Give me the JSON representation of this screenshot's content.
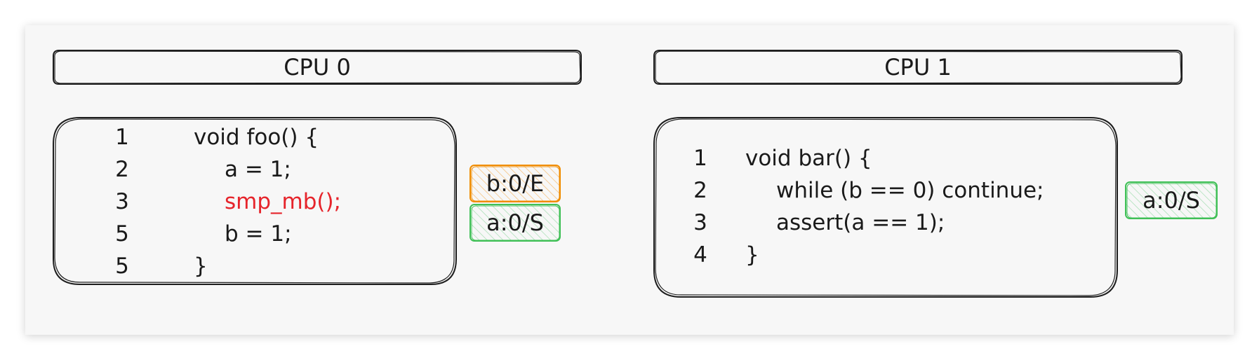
{
  "cpus": [
    {
      "title": "CPU 0",
      "code": [
        {
          "num": "1",
          "text": "void foo() {",
          "indent": 0,
          "highlight": false
        },
        {
          "num": "2",
          "text": "a = 1;",
          "indent": 1,
          "highlight": false
        },
        {
          "num": "3",
          "text": "smp_mb();",
          "indent": 1,
          "highlight": true
        },
        {
          "num": "5",
          "text": "b = 1;",
          "indent": 1,
          "highlight": false
        },
        {
          "num": "5",
          "text": "}",
          "indent": 0,
          "highlight": false
        }
      ],
      "cache": [
        {
          "text": "b:0/E",
          "color": "#f08c00"
        },
        {
          "text": "a:0/S",
          "color": "#40c057"
        }
      ]
    },
    {
      "title": "CPU 1",
      "code": [
        {
          "num": "1",
          "text": "void bar() {",
          "indent": 0,
          "highlight": false
        },
        {
          "num": "2",
          "text": "while (b == 0) continue;",
          "indent": 1,
          "highlight": false
        },
        {
          "num": "3",
          "text": "assert(a == 1);",
          "indent": 1,
          "highlight": false
        },
        {
          "num": "4",
          "text": "}",
          "indent": 0,
          "highlight": false
        }
      ],
      "cache": [
        {
          "text": "a:0/S",
          "color": "#40c057"
        }
      ]
    }
  ],
  "colors": {
    "stroke": "#1e1e1e",
    "highlight": "#e6242b",
    "cache_exclusive": "#f08c00",
    "cache_shared": "#40c057"
  }
}
